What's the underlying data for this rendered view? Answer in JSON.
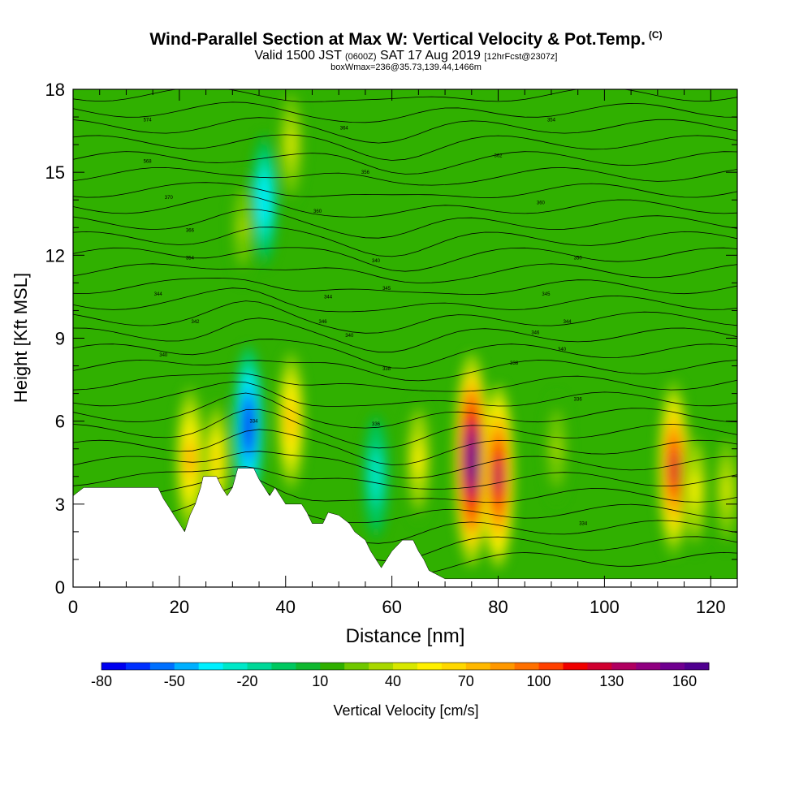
{
  "header": {
    "title": "Wind-Parallel Section at Max W: Vertical Velocity & Pot.Temp.",
    "copyright": "(C)",
    "valid_prefix": "Valid 1500 JST",
    "utc": "(0600Z)",
    "valid_date": "SAT 17 Aug 2019",
    "forecast": "[12hrFcst@2307z]",
    "box_info": "boxWmax=236@35.73,139.44,1466m"
  },
  "chart_data": {
    "type": "heatmap",
    "xlabel": "Distance [nm]",
    "ylabel": "Height [Kft MSL]",
    "xlim": [
      0,
      125
    ],
    "ylim": [
      0,
      18
    ],
    "x_ticks": [
      0,
      20,
      40,
      60,
      80,
      100,
      120
    ],
    "y_ticks": [
      0,
      3,
      6,
      9,
      12,
      15,
      18
    ],
    "background_value": 10,
    "colorbar": {
      "label": "Vertical Velocity [cm/s]",
      "min": -80,
      "max": 170,
      "tick_labels": [
        -80,
        -50,
        -20,
        10,
        40,
        70,
        100,
        130,
        160
      ],
      "colors": [
        "#0000f0",
        "#0030ff",
        "#0070ff",
        "#00b0ff",
        "#00f0ff",
        "#00e8c8",
        "#00d898",
        "#00c860",
        "#10b830",
        "#30b000",
        "#70c800",
        "#a8d800",
        "#d8e800",
        "#fff000",
        "#ffd800",
        "#ffb800",
        "#ff9800",
        "#ff7000",
        "#ff4000",
        "#f00000",
        "#d00030",
        "#b00060",
        "#900080",
        "#700090",
        "#500090"
      ]
    },
    "terrain": [
      [
        0,
        3.3
      ],
      [
        2,
        3.6
      ],
      [
        16,
        3.6
      ],
      [
        17,
        3.2
      ],
      [
        18,
        2.9
      ],
      [
        19,
        2.6
      ],
      [
        20,
        2.3
      ],
      [
        21,
        2.0
      ],
      [
        22,
        2.6
      ],
      [
        23,
        3.0
      ],
      [
        24,
        3.6
      ],
      [
        24.5,
        4.0
      ],
      [
        27,
        4.0
      ],
      [
        28,
        3.6
      ],
      [
        29,
        3.3
      ],
      [
        30,
        3.6
      ],
      [
        31,
        4.3
      ],
      [
        34,
        4.3
      ],
      [
        35,
        3.9
      ],
      [
        36,
        3.6
      ],
      [
        37,
        3.3
      ],
      [
        38,
        3.6
      ],
      [
        39,
        3.3
      ],
      [
        40,
        3.0
      ],
      [
        43,
        3.0
      ],
      [
        44,
        2.7
      ],
      [
        45,
        2.3
      ],
      [
        47,
        2.3
      ],
      [
        48,
        2.7
      ],
      [
        50,
        2.6
      ],
      [
        52,
        2.3
      ],
      [
        53,
        2.0
      ],
      [
        55,
        1.7
      ],
      [
        56,
        1.3
      ],
      [
        57,
        1.0
      ],
      [
        58,
        0.7
      ],
      [
        59,
        1.0
      ],
      [
        60,
        1.3
      ],
      [
        62,
        1.7
      ],
      [
        64,
        1.7
      ],
      [
        65,
        1.3
      ],
      [
        66,
        1.0
      ],
      [
        67,
        0.6
      ],
      [
        70,
        0.3
      ],
      [
        125,
        0.3
      ]
    ],
    "cells": [
      {
        "x": 75,
        "y": 4.6,
        "value": 170
      },
      {
        "x": 80,
        "y": 4.0,
        "value": 130
      },
      {
        "x": 113,
        "y": 4.3,
        "value": 120
      },
      {
        "x": 33,
        "y": 5.8,
        "value": -80
      },
      {
        "x": 22,
        "y": 4.6,
        "value": 80
      },
      {
        "x": 27,
        "y": 4.6,
        "value": 60
      },
      {
        "x": 41,
        "y": 6.0,
        "value": 70
      },
      {
        "x": 36,
        "y": 14.0,
        "value": -40
      },
      {
        "x": 32,
        "y": 13.0,
        "value": 30
      },
      {
        "x": 41,
        "y": 16.0,
        "value": 40
      },
      {
        "x": 57,
        "y": 4.0,
        "value": -30
      },
      {
        "x": 65,
        "y": 4.6,
        "value": 50
      },
      {
        "x": 91,
        "y": 5.0,
        "value": 30
      },
      {
        "x": 117,
        "y": 3.5,
        "value": 50
      },
      {
        "x": 123,
        "y": 3.5,
        "value": 40
      }
    ],
    "theta_labels": [
      {
        "x": 14,
        "y": 16.9,
        "text": "574"
      },
      {
        "x": 14,
        "y": 15.4,
        "text": "568"
      },
      {
        "x": 18,
        "y": 14.1,
        "text": "370"
      },
      {
        "x": 22,
        "y": 12.9,
        "text": "366"
      },
      {
        "x": 22,
        "y": 11.9,
        "text": "354"
      },
      {
        "x": 16,
        "y": 10.6,
        "text": "344"
      },
      {
        "x": 23,
        "y": 9.6,
        "text": "342"
      },
      {
        "x": 17,
        "y": 8.4,
        "text": "340"
      },
      {
        "x": 51,
        "y": 16.6,
        "text": "364"
      },
      {
        "x": 55,
        "y": 15.0,
        "text": "356"
      },
      {
        "x": 46,
        "y": 13.6,
        "text": "360"
      },
      {
        "x": 57,
        "y": 11.8,
        "text": "340"
      },
      {
        "x": 59,
        "y": 10.8,
        "text": "345"
      },
      {
        "x": 48,
        "y": 10.5,
        "text": "344"
      },
      {
        "x": 47,
        "y": 9.6,
        "text": "346"
      },
      {
        "x": 52,
        "y": 9.1,
        "text": "340"
      },
      {
        "x": 59,
        "y": 7.9,
        "text": "338"
      },
      {
        "x": 57,
        "y": 5.9,
        "text": "336"
      },
      {
        "x": 34,
        "y": 6.0,
        "text": "334"
      },
      {
        "x": 90,
        "y": 16.9,
        "text": "354"
      },
      {
        "x": 80,
        "y": 15.6,
        "text": "362"
      },
      {
        "x": 88,
        "y": 13.9,
        "text": "360"
      },
      {
        "x": 95,
        "y": 11.9,
        "text": "350"
      },
      {
        "x": 89,
        "y": 10.6,
        "text": "345"
      },
      {
        "x": 93,
        "y": 9.6,
        "text": "344"
      },
      {
        "x": 87,
        "y": 9.2,
        "text": "346"
      },
      {
        "x": 92,
        "y": 8.6,
        "text": "340"
      },
      {
        "x": 83,
        "y": 8.1,
        "text": "338"
      },
      {
        "x": 95,
        "y": 6.8,
        "text": "336"
      },
      {
        "x": 96,
        "y": 2.3,
        "text": "334"
      }
    ]
  }
}
